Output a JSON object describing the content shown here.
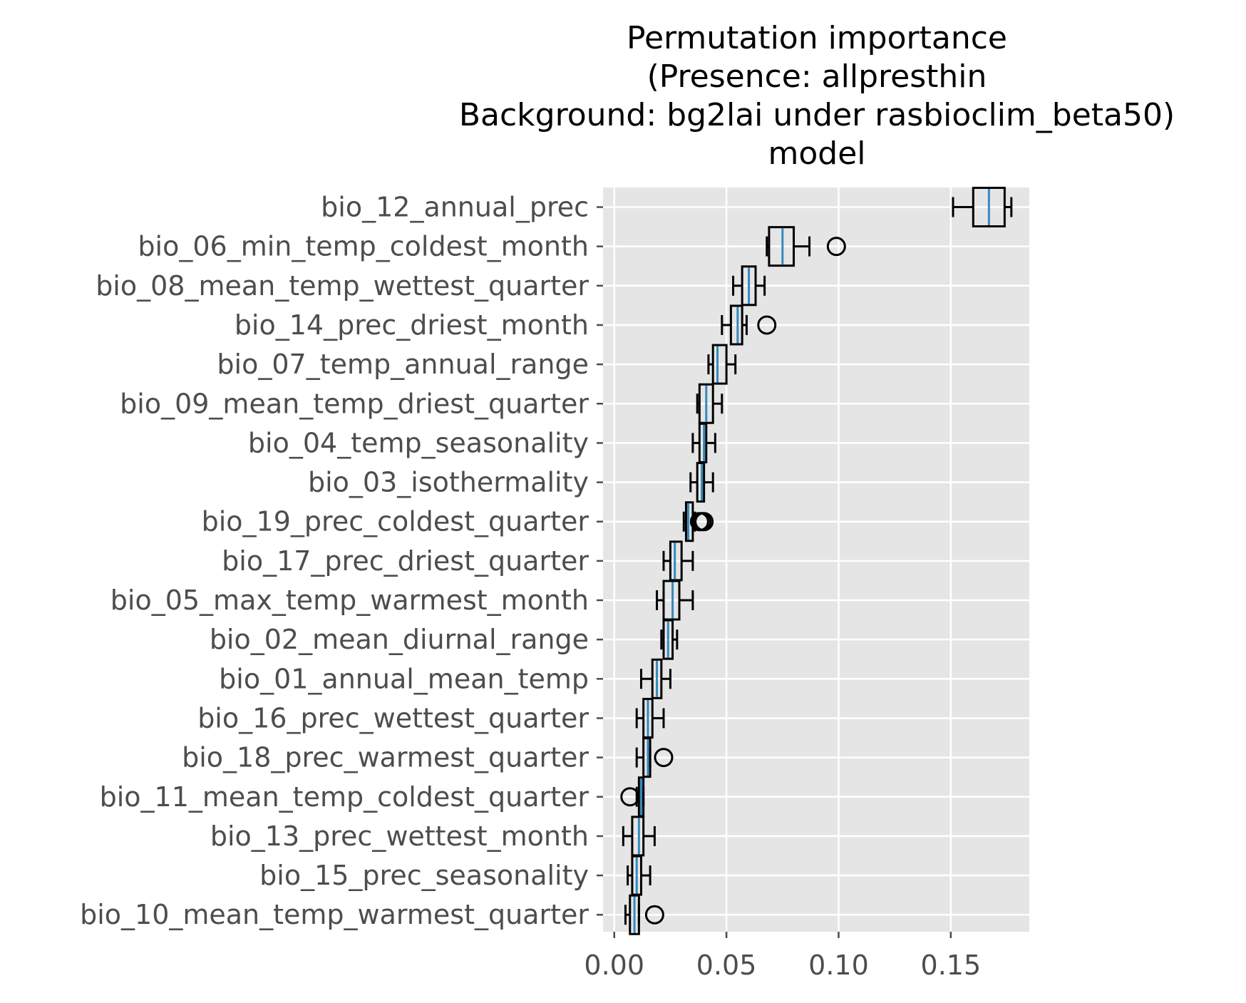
{
  "chart_data": {
    "type": "boxplot",
    "orientation": "horizontal",
    "title_lines": [
      "Permutation importance",
      "(Presence: allpresthin",
      "Background: bg2lai under rasbioclim_beta50)",
      "model"
    ],
    "xlabel": "",
    "ylabel": "",
    "xlim": [
      -0.005,
      0.185
    ],
    "x_ticks": [
      0.0,
      0.05,
      0.1,
      0.15
    ],
    "x_tick_labels": [
      "0.00",
      "0.05",
      "0.10",
      "0.15"
    ],
    "grid": true,
    "style": "ggplot",
    "colors": {
      "plot_background": "#e5e5e5",
      "grid": "#ffffff",
      "box_edge": "#000000",
      "median": "#348abd",
      "tick_text": "#4d4d4d",
      "title_text": "#000000"
    },
    "categories": [
      "bio_12_annual_prec",
      "bio_06_min_temp_coldest_month",
      "bio_08_mean_temp_wettest_quarter",
      "bio_14_prec_driest_month",
      "bio_07_temp_annual_range",
      "bio_09_mean_temp_driest_quarter",
      "bio_04_temp_seasonality",
      "bio_03_isothermality",
      "bio_19_prec_coldest_quarter",
      "bio_17_prec_driest_quarter",
      "bio_05_max_temp_warmest_month",
      "bio_02_mean_diurnal_range",
      "bio_01_annual_mean_temp",
      "bio_16_prec_wettest_quarter",
      "bio_18_prec_warmest_quarter",
      "bio_11_mean_temp_coldest_quarter",
      "bio_13_prec_wettest_month",
      "bio_15_prec_seasonality",
      "bio_10_mean_temp_warmest_quarter"
    ],
    "boxes": [
      {
        "whislo": 0.151,
        "q1": 0.16,
        "med": 0.167,
        "q3": 0.174,
        "whishi": 0.177,
        "fliers": []
      },
      {
        "whislo": 0.068,
        "q1": 0.069,
        "med": 0.075,
        "q3": 0.08,
        "whishi": 0.087,
        "fliers": [
          0.099
        ]
      },
      {
        "whislo": 0.053,
        "q1": 0.057,
        "med": 0.06,
        "q3": 0.063,
        "whishi": 0.067,
        "fliers": []
      },
      {
        "whislo": 0.048,
        "q1": 0.052,
        "med": 0.055,
        "q3": 0.057,
        "whishi": 0.059,
        "fliers": [
          0.068
        ]
      },
      {
        "whislo": 0.042,
        "q1": 0.044,
        "med": 0.046,
        "q3": 0.05,
        "whishi": 0.054,
        "fliers": []
      },
      {
        "whislo": 0.037,
        "q1": 0.038,
        "med": 0.041,
        "q3": 0.044,
        "whishi": 0.048,
        "fliers": []
      },
      {
        "whislo": 0.035,
        "q1": 0.038,
        "med": 0.04,
        "q3": 0.041,
        "whishi": 0.045,
        "fliers": []
      },
      {
        "whislo": 0.034,
        "q1": 0.037,
        "med": 0.039,
        "q3": 0.04,
        "whishi": 0.044,
        "fliers": []
      },
      {
        "whislo": 0.031,
        "q1": 0.032,
        "med": 0.033,
        "q3": 0.035,
        "whishi": 0.036,
        "fliers": [
          0.038,
          0.039,
          0.04
        ]
      },
      {
        "whislo": 0.022,
        "q1": 0.025,
        "med": 0.027,
        "q3": 0.03,
        "whishi": 0.035,
        "fliers": []
      },
      {
        "whislo": 0.019,
        "q1": 0.022,
        "med": 0.026,
        "q3": 0.029,
        "whishi": 0.035,
        "fliers": []
      },
      {
        "whislo": 0.021,
        "q1": 0.022,
        "med": 0.024,
        "q3": 0.026,
        "whishi": 0.028,
        "fliers": []
      },
      {
        "whislo": 0.012,
        "q1": 0.017,
        "med": 0.019,
        "q3": 0.021,
        "whishi": 0.025,
        "fliers": []
      },
      {
        "whislo": 0.01,
        "q1": 0.013,
        "med": 0.015,
        "q3": 0.017,
        "whishi": 0.022,
        "fliers": []
      },
      {
        "whislo": 0.01,
        "q1": 0.013,
        "med": 0.015,
        "q3": 0.016,
        "whishi": 0.016,
        "fliers": [
          0.022
        ]
      },
      {
        "whislo": 0.01,
        "q1": 0.011,
        "med": 0.012,
        "q3": 0.013,
        "whishi": 0.013,
        "fliers": [
          0.007
        ]
      },
      {
        "whislo": 0.004,
        "q1": 0.008,
        "med": 0.011,
        "q3": 0.013,
        "whishi": 0.018,
        "fliers": []
      },
      {
        "whislo": 0.006,
        "q1": 0.008,
        "med": 0.01,
        "q3": 0.012,
        "whishi": 0.016,
        "fliers": []
      },
      {
        "whislo": 0.005,
        "q1": 0.007,
        "med": 0.009,
        "q3": 0.011,
        "whishi": 0.011,
        "fliers": [
          0.018
        ]
      }
    ]
  }
}
